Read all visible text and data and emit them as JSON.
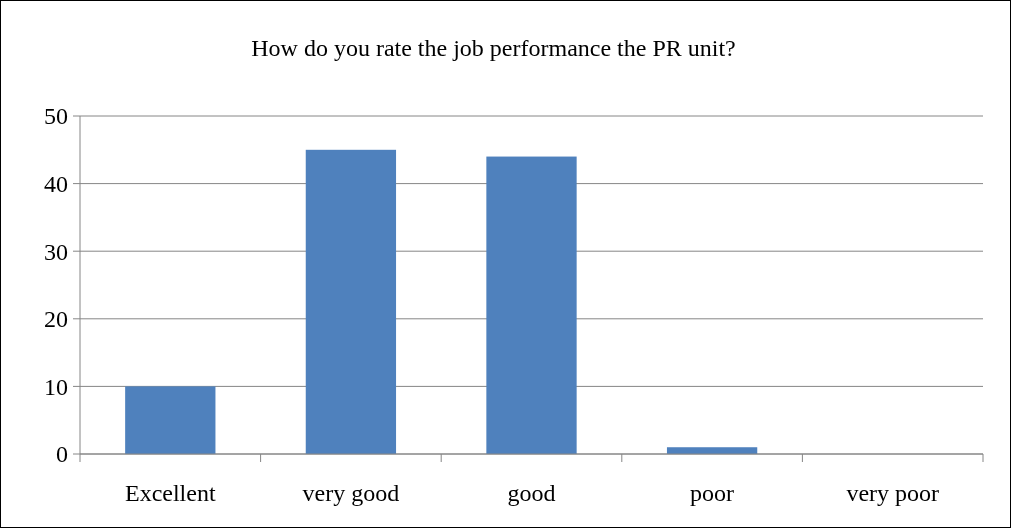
{
  "chart_data": {
    "type": "bar",
    "title": "How do you rate the job performance the PR unit?",
    "categories": [
      "Excellent",
      "very good",
      "good",
      "poor",
      "very poor"
    ],
    "values": [
      10,
      45,
      44,
      1,
      0
    ],
    "color": "#4f81bd",
    "ylim": [
      0,
      50
    ],
    "yticks": [
      0,
      10,
      20,
      30,
      40,
      50
    ],
    "grid": "y"
  }
}
